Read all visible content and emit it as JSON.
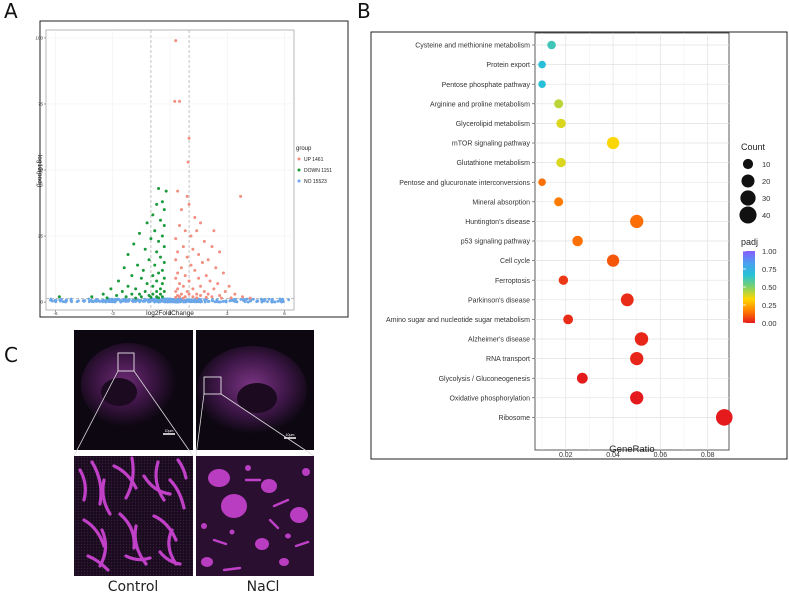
{
  "figure": {
    "labels": {
      "a": "A",
      "b": "B",
      "c": "C"
    }
  },
  "chart_data": [
    {
      "type": "scatter",
      "panel": "A",
      "title": "",
      "xlabel": "log2FoldChange",
      "ylabel": "-log10(padj)",
      "xlim": [
        -6.5,
        6.5
      ],
      "ylim": [
        -3,
        103
      ],
      "x_ticks": [
        -6,
        -3,
        0,
        3,
        6
      ],
      "y_ticks": [
        0,
        25,
        50,
        75,
        100
      ],
      "threshold_lines": {
        "x": [
          -1,
          1
        ],
        "y": 1.3
      },
      "legend": {
        "title": "group",
        "placement": "right",
        "entries": [
          "UP 1461",
          "DOWN 1151",
          "NO 15523"
        ]
      },
      "colors": {
        "UP": "#f28e7f",
        "DOWN": "#1a9a3a",
        "NO": "#6aa6e8"
      },
      "series": [
        {
          "name": "UP 1461",
          "points": [
            [
              0.3,
              99
            ],
            [
              0.25,
              76
            ],
            [
              0.5,
              76
            ],
            [
              1.0,
              62
            ],
            [
              0.95,
              53
            ],
            [
              3.7,
              40
            ],
            [
              0.4,
              42
            ],
            [
              0.9,
              40
            ],
            [
              1.0,
              37
            ],
            [
              0.6,
              35
            ],
            [
              1.3,
              32
            ],
            [
              1.6,
              30
            ],
            [
              0.5,
              29
            ],
            [
              0.8,
              27
            ],
            [
              1.4,
              27
            ],
            [
              2.3,
              27
            ],
            [
              1.1,
              25
            ],
            [
              0.3,
              24
            ],
            [
              1.8,
              23
            ],
            [
              2.2,
              21
            ],
            [
              0.7,
              21
            ],
            [
              1.2,
              20
            ],
            [
              2.6,
              19
            ],
            [
              0.4,
              19
            ],
            [
              1.5,
              18
            ],
            [
              0.9,
              17
            ],
            [
              2.0,
              16
            ],
            [
              0.3,
              16
            ],
            [
              1.7,
              15
            ],
            [
              1.1,
              14
            ],
            [
              2.4,
              13
            ],
            [
              0.6,
              13
            ],
            [
              1.3,
              12
            ],
            [
              0.4,
              11
            ],
            [
              2.8,
              11
            ],
            [
              1.9,
              10
            ],
            [
              0.8,
              10
            ],
            [
              1.5,
              9
            ],
            [
              0.3,
              9
            ],
            [
              2.1,
              8
            ],
            [
              1.0,
              8
            ],
            [
              0.5,
              7
            ],
            [
              2.5,
              7
            ],
            [
              1.6,
              6
            ],
            [
              0.7,
              6
            ],
            [
              3.1,
              6
            ],
            [
              1.2,
              5
            ],
            [
              0.4,
              5
            ],
            [
              2.3,
              5
            ],
            [
              1.8,
              4
            ],
            [
              0.9,
              4
            ],
            [
              0.3,
              4
            ],
            [
              2.9,
              4
            ],
            [
              1.4,
              3
            ],
            [
              0.6,
              3
            ],
            [
              2.0,
              3
            ],
            [
              3.4,
              3
            ],
            [
              1.0,
              3
            ],
            [
              1.6,
              2.5
            ],
            [
              0.4,
              2.5
            ],
            [
              2.6,
              2.5
            ],
            [
              0.8,
              2
            ],
            [
              1.2,
              2
            ],
            [
              2.2,
              2
            ],
            [
              3.8,
              2
            ],
            [
              0.5,
              2
            ],
            [
              1.9,
              1.8
            ],
            [
              0.3,
              1.8
            ],
            [
              3.2,
              1.6
            ],
            [
              1.4,
              1.6
            ],
            [
              2.7,
              1.5
            ],
            [
              4.2,
              1.5
            ],
            [
              0.7,
              1.5
            ]
          ]
        },
        {
          "name": "DOWN 1151",
          "points": [
            [
              -0.6,
              43
            ],
            [
              -0.2,
              42
            ],
            [
              -0.4,
              38
            ],
            [
              -0.7,
              37
            ],
            [
              -0.3,
              35
            ],
            [
              -0.9,
              33
            ],
            [
              -0.5,
              31
            ],
            [
              -1.2,
              30
            ],
            [
              -0.3,
              29
            ],
            [
              -0.8,
              27
            ],
            [
              -1.6,
              26
            ],
            [
              -0.4,
              25
            ],
            [
              -1.0,
              24
            ],
            [
              -0.6,
              23
            ],
            [
              -1.9,
              22
            ],
            [
              -0.3,
              21
            ],
            [
              -1.3,
              20
            ],
            [
              -0.7,
              19
            ],
            [
              -2.2,
              18
            ],
            [
              -0.5,
              17
            ],
            [
              -1.1,
              16
            ],
            [
              -0.3,
              15
            ],
            [
              -1.7,
              14
            ],
            [
              -0.8,
              14
            ],
            [
              -2.4,
              13
            ],
            [
              -0.4,
              12
            ],
            [
              -1.4,
              12
            ],
            [
              -0.6,
              11
            ],
            [
              -2.0,
              10
            ],
            [
              -0.9,
              10
            ],
            [
              -0.3,
              9
            ],
            [
              -1.5,
              9
            ],
            [
              -2.7,
              8
            ],
            [
              -0.7,
              8
            ],
            [
              -1.2,
              7
            ],
            [
              -0.4,
              7
            ],
            [
              -2.2,
              6
            ],
            [
              -0.9,
              6
            ],
            [
              -1.8,
              5
            ],
            [
              -0.5,
              5
            ],
            [
              -3.1,
              5
            ],
            [
              -1.3,
              4
            ],
            [
              -0.7,
              4
            ],
            [
              -2.5,
              4
            ],
            [
              -0.3,
              4
            ],
            [
              -1.6,
              3
            ],
            [
              -0.9,
              3
            ],
            [
              -3.5,
              3
            ],
            [
              -2.0,
              3
            ],
            [
              -0.5,
              3
            ],
            [
              -1.1,
              2.5
            ],
            [
              -2.8,
              2.5
            ],
            [
              -0.7,
              2
            ],
            [
              -1.5,
              2
            ],
            [
              -4.1,
              2
            ],
            [
              -0.4,
              2
            ],
            [
              -2.3,
              2
            ],
            [
              -5.8,
              2
            ],
            [
              -1.0,
              1.8
            ],
            [
              -3.3,
              1.6
            ],
            [
              -0.6,
              1.6
            ],
            [
              -1.8,
              1.5
            ]
          ]
        }
      ]
    },
    {
      "type": "scatter",
      "panel": "B",
      "title": "",
      "xlabel": "GeneRatio",
      "ylabel": "",
      "xlim": [
        0.007,
        0.089
      ],
      "x_ticks": [
        0.02,
        0.04,
        0.06,
        0.08
      ],
      "x_tick_labels": [
        "0.02",
        "0.04",
        "0.06",
        "0.08"
      ],
      "categories": [
        "Cysteine and methionine metabolism",
        "Protein export",
        "Pentose phosphate pathway",
        "Arginine and proline metabolism",
        "Glycerolipid metabolism",
        "mTOR signaling pathway",
        "Glutathione metabolism",
        "Pentose and glucuronate interconversions",
        "Mineral absorption",
        "Huntington's disease",
        "p53 signaling pathway",
        "Cell cycle",
        "Ferroptosis",
        "Parkinson's disease",
        "Amino sugar and nucleotide sugar metabolism",
        "Alzheimer's disease",
        "RNA transport",
        "Glycolysis / Gluconeogenesis",
        "Oxidative phosphorylation",
        "Ribosome"
      ],
      "gene_ratio": [
        0.014,
        0.01,
        0.01,
        0.017,
        0.018,
        0.04,
        0.018,
        0.01,
        0.017,
        0.05,
        0.025,
        0.04,
        0.019,
        0.046,
        0.021,
        0.052,
        0.05,
        0.027,
        0.05,
        0.087
      ],
      "count": [
        6,
        4,
        4,
        7,
        8,
        17,
        8,
        4,
        7,
        21,
        11,
        17,
        8,
        19,
        9,
        22,
        21,
        12,
        21,
        37
      ],
      "padj": [
        0.62,
        0.68,
        0.68,
        0.42,
        0.38,
        0.34,
        0.38,
        0.14,
        0.16,
        0.14,
        0.14,
        0.1,
        0.05,
        0.03,
        0.03,
        0.02,
        0.02,
        0.0,
        0.0,
        0.0
      ],
      "legend_count": {
        "title": "Count",
        "values": [
          10,
          20,
          30,
          40
        ],
        "placement": "right"
      },
      "legend_padj": {
        "title": "padj",
        "ticks": [
          "1.00",
          "0.75",
          "0.50",
          "0.25",
          "0.00"
        ],
        "placement": "right"
      },
      "colors": {
        "padj_gradient": [
          "#e41a1c",
          "#ff7f00",
          "#ffd700",
          "#7fd26a",
          "#27c2d6",
          "#4aa0f0",
          "#8a5cff"
        ]
      }
    }
  ],
  "micrographs": {
    "scale_bar_label": "10μm",
    "colors": {
      "background": "#0c0710",
      "signal": "#c040c8"
    },
    "captions": {
      "control": "Control",
      "nacl": "NaCl"
    }
  }
}
